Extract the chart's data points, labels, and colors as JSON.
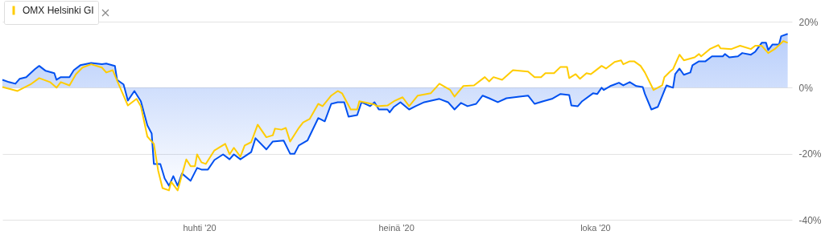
{
  "chart_data": {
    "type": "line",
    "xlim": [
      "2020-01-01",
      "2020-12-31"
    ],
    "xticks": [
      {
        "value": "2020-04-01",
        "label": "huhti '20"
      },
      {
        "value": "2020-07-01",
        "label": "heinä '20"
      },
      {
        "value": "2020-10-01",
        "label": "loka '20"
      }
    ],
    "ylim": [
      -40,
      20
    ],
    "yticks": [
      {
        "value": 20,
        "label": "20%"
      },
      {
        "value": 0,
        "label": "0%"
      },
      {
        "value": -20,
        "label": "-20%"
      },
      {
        "value": -40,
        "label": "-40%"
      }
    ],
    "grid": "y",
    "legend": "top left",
    "line_style": "solid",
    "series": [
      {
        "type": "area",
        "color": "#0050f0",
        "x": [
          "2020-01-01",
          "2020-01-04",
          "2020-01-07",
          "2020-01-09",
          "2020-01-12",
          "2020-01-16",
          "2020-01-18",
          "2020-01-21",
          "2020-01-25",
          "2020-01-26",
          "2020-01-28",
          "2020-02-01",
          "2020-02-03",
          "2020-02-06",
          "2020-02-11",
          "2020-02-16",
          "2020-02-18",
          "2020-02-22",
          "2020-02-23",
          "2020-02-26",
          "2020-02-28",
          "2020-03-02",
          "2020-03-05",
          "2020-03-08",
          "2020-03-10",
          "2020-03-11",
          "2020-03-14",
          "2020-03-16",
          "2020-03-18",
          "2020-03-20",
          "2020-03-22",
          "2020-03-24",
          "2020-03-28",
          "2020-03-31",
          "2020-04-02",
          "2020-04-05",
          "2020-04-08",
          "2020-04-12",
          "2020-04-15",
          "2020-04-17",
          "2020-04-20",
          "2020-04-25",
          "2020-04-27",
          "2020-05-02",
          "2020-05-05",
          "2020-05-10",
          "2020-05-13",
          "2020-05-15",
          "2020-05-17",
          "2020-05-21",
          "2020-05-26",
          "2020-05-29",
          "2020-06-01",
          "2020-06-04",
          "2020-06-07",
          "2020-06-09",
          "2020-06-13",
          "2020-06-15",
          "2020-06-19",
          "2020-06-21",
          "2020-06-23",
          "2020-06-27",
          "2020-06-28",
          "2020-06-30",
          "2020-07-03",
          "2020-07-07",
          "2020-07-10",
          "2020-07-14",
          "2020-07-21",
          "2020-07-25",
          "2020-07-28",
          "2020-07-31",
          "2020-08-03",
          "2020-08-07",
          "2020-08-10",
          "2020-08-13",
          "2020-08-17",
          "2020-08-21",
          "2020-08-27",
          "2020-08-31",
          "2020-09-03",
          "2020-09-07",
          "2020-09-11",
          "2020-09-15",
          "2020-09-19",
          "2020-09-20",
          "2020-09-23",
          "2020-09-25",
          "2020-09-30",
          "2020-10-02",
          "2020-10-04",
          "2020-10-05",
          "2020-10-08",
          "2020-10-12",
          "2020-10-14",
          "2020-10-17",
          "2020-10-20",
          "2020-10-23",
          "2020-10-24",
          "2020-10-27",
          "2020-10-30",
          "2020-11-03",
          "2020-11-06",
          "2020-11-07",
          "2020-11-09",
          "2020-11-11",
          "2020-11-14",
          "2020-11-15",
          "2020-11-18",
          "2020-11-21",
          "2020-11-24",
          "2020-11-29",
          "2020-11-30",
          "2020-12-02",
          "2020-12-06",
          "2020-12-08",
          "2020-12-12",
          "2020-12-14",
          "2020-12-17",
          "2020-12-19",
          "2020-12-20",
          "2020-12-22",
          "2020-12-25",
          "2020-12-26",
          "2020-12-29"
        ],
        "values": [
          2.4,
          1.7,
          1.2,
          2.7,
          3.2,
          5.6,
          6.6,
          5.1,
          4.4,
          2.4,
          3.2,
          3.2,
          5.3,
          6.8,
          7.5,
          7.1,
          7.3,
          6.6,
          2.4,
          1.0,
          -3.9,
          -1.0,
          -4.1,
          -11.4,
          -13.9,
          -23.1,
          -23.1,
          -27.5,
          -29.7,
          -26.8,
          -29.7,
          -26,
          -28.2,
          -24.3,
          -24.8,
          -24.8,
          -21.9,
          -20.2,
          -21.7,
          -20.2,
          -21.7,
          -19.5,
          -15.3,
          -18.7,
          -16.3,
          -16,
          -20,
          -20,
          -17.5,
          -16,
          -9.2,
          -10.2,
          -4.9,
          -4.4,
          -4.4,
          -8.8,
          -8.3,
          -4.4,
          -5.6,
          -4.4,
          -6.6,
          -6.6,
          -7.5,
          -5.8,
          -4.4,
          -6.6,
          -5.6,
          -4.4,
          -3.4,
          -4.4,
          -6.6,
          -4.6,
          -5.6,
          -4.9,
          -2.4,
          -3.2,
          -4.4,
          -3.2,
          -2.7,
          -2.4,
          -4.9,
          -4.1,
          -3.4,
          -1.9,
          -2.2,
          -5.4,
          -5.6,
          -4.1,
          -1.7,
          -1.9,
          0,
          -0.7,
          0.5,
          1.5,
          0.7,
          1.7,
          0.5,
          0.2,
          -1.9,
          -6.6,
          -5.8,
          0.7,
          0,
          4.1,
          5.8,
          3.9,
          4.6,
          6.8,
          8,
          8,
          9.5,
          9.5,
          10.2,
          9.2,
          9.5,
          10.5,
          10,
          10.9,
          13.6,
          13.6,
          11.4,
          13.1,
          13.1,
          15.6,
          16.3
        ]
      },
      {
        "type": "line",
        "name": "OMX Helsinki GI",
        "color": "#ffcc00",
        "x": [
          "2020-01-01",
          "2020-01-08",
          "2020-01-14",
          "2020-01-18",
          "2020-01-23",
          "2020-01-26",
          "2020-01-28",
          "2020-02-01",
          "2020-02-04",
          "2020-02-07",
          "2020-02-11",
          "2020-02-16",
          "2020-02-18",
          "2020-02-21",
          "2020-02-23",
          "2020-02-28",
          "2020-03-03",
          "2020-03-05",
          "2020-03-08",
          "2020-03-11",
          "2020-03-13",
          "2020-03-15",
          "2020-03-18",
          "2020-03-19",
          "2020-03-22",
          "2020-03-26",
          "2020-03-28",
          "2020-03-30",
          "2020-03-31",
          "2020-04-02",
          "2020-04-04",
          "2020-04-08",
          "2020-04-11",
          "2020-04-13",
          "2020-04-15",
          "2020-04-17",
          "2020-04-20",
          "2020-04-22",
          "2020-04-25",
          "2020-04-28",
          "2020-05-02",
          "2020-05-05",
          "2020-05-06",
          "2020-05-09",
          "2020-05-11",
          "2020-05-13",
          "2020-05-17",
          "2020-05-19",
          "2020-05-22",
          "2020-05-26",
          "2020-05-28",
          "2020-06-01",
          "2020-06-04",
          "2020-06-06",
          "2020-06-10",
          "2020-06-13",
          "2020-06-14",
          "2020-06-21",
          "2020-06-22",
          "2020-06-27",
          "2020-06-30",
          "2020-07-04",
          "2020-07-07",
          "2020-07-11",
          "2020-07-17",
          "2020-07-21",
          "2020-07-26",
          "2020-07-28",
          "2020-08-01",
          "2020-08-06",
          "2020-08-11",
          "2020-08-13",
          "2020-08-15",
          "2020-08-19",
          "2020-08-24",
          "2020-08-31",
          "2020-09-03",
          "2020-09-06",
          "2020-09-08",
          "2020-09-12",
          "2020-09-15",
          "2020-09-18",
          "2020-09-19",
          "2020-09-22",
          "2020-09-24",
          "2020-09-27",
          "2020-09-29",
          "2020-10-01",
          "2020-10-04",
          "2020-10-06",
          "2020-10-10",
          "2020-10-13",
          "2020-10-14",
          "2020-10-17",
          "2020-10-19",
          "2020-10-22",
          "2020-10-24",
          "2020-10-28",
          "2020-11-01",
          "2020-11-02",
          "2020-11-05",
          "2020-11-06",
          "2020-11-09",
          "2020-11-11",
          "2020-11-16",
          "2020-11-18",
          "2020-11-19",
          "2020-11-23",
          "2020-11-27",
          "2020-11-28",
          "2020-12-03",
          "2020-12-07",
          "2020-12-12",
          "2020-12-14",
          "2020-12-17",
          "2020-12-20",
          "2020-12-23",
          "2020-12-27",
          "2020-12-29"
        ],
        "values": [
          0.2,
          -1.0,
          1.0,
          2.9,
          1.7,
          0,
          1.7,
          0.7,
          4.1,
          6.1,
          7.1,
          6.1,
          4.6,
          5.3,
          2.2,
          -5.4,
          -3.4,
          -5.6,
          -14.8,
          -17,
          -25.1,
          -30.4,
          -31.1,
          -28.5,
          -31.1,
          -21.7,
          -23.8,
          -23.8,
          -20.2,
          -22.6,
          -23.1,
          -19,
          -17.8,
          -17,
          -20.2,
          -18.2,
          -20.9,
          -17.5,
          -16.5,
          -11.2,
          -15,
          -14.4,
          -12.4,
          -12.7,
          -12.2,
          -16.3,
          -12.2,
          -10.5,
          -9.5,
          -4.9,
          -5.6,
          -2.4,
          -1.0,
          -1.7,
          -6.6,
          -6.6,
          -4.1,
          -5.1,
          -5.6,
          -5.4,
          -4.1,
          -2.9,
          -5.6,
          -2.4,
          -1.7,
          1.2,
          -0.7,
          -2.7,
          0.5,
          0.7,
          3.2,
          1.9,
          3.2,
          2.4,
          5.3,
          4.9,
          3.2,
          3.2,
          4.4,
          4.4,
          6.3,
          6.3,
          2.9,
          4.1,
          2.7,
          4.4,
          4.1,
          5.1,
          6.6,
          5.8,
          7.8,
          8.3,
          7.1,
          8,
          8,
          6.6,
          4.6,
          -0.7,
          0.7,
          3.2,
          5.1,
          5.6,
          10,
          8.3,
          9.2,
          10.2,
          9.5,
          11.7,
          12.9,
          11.9,
          11.7,
          12.7,
          11.7,
          12.7,
          12.7,
          10.5,
          11.7,
          14.1,
          13.6
        ]
      }
    ]
  }
}
